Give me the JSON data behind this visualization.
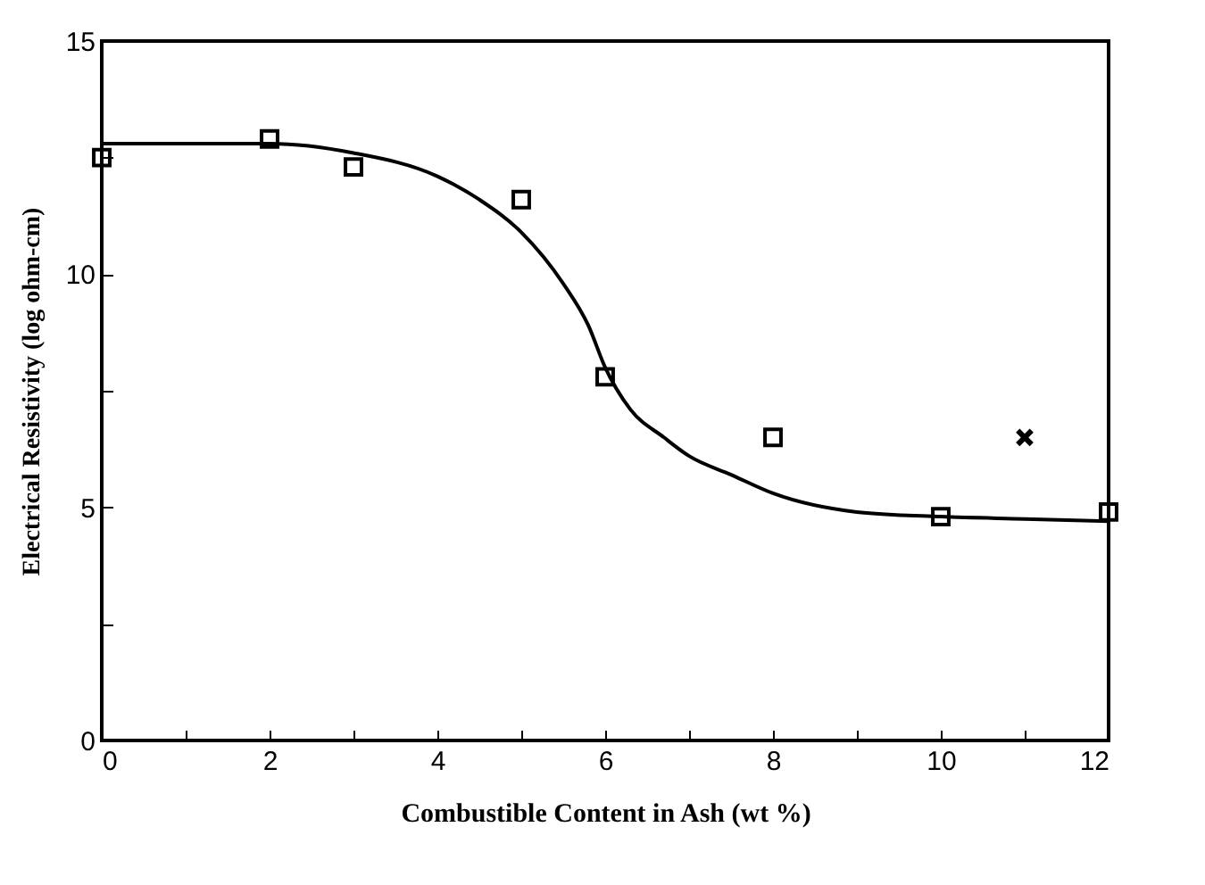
{
  "chart_data": {
    "type": "scatter",
    "xlabel": "Combustible Content in Ash (wt %)",
    "ylabel": "Electrical Resistivity (log ohm-cm)",
    "xlim": [
      0,
      12
    ],
    "ylim": [
      0,
      15
    ],
    "xticks": [
      0,
      {
        "value": 1,
        "label": null
      },
      2,
      {
        "value": 3,
        "label": null
      },
      4,
      {
        "value": 5,
        "label": null
      },
      6,
      {
        "value": 7,
        "label": null
      },
      8,
      {
        "value": 9,
        "label": null
      },
      10,
      {
        "value": 11,
        "label": null
      },
      12
    ],
    "yticks": [
      0,
      {
        "value": 2.5,
        "label": null
      },
      5,
      {
        "value": 7.5,
        "label": null
      },
      10,
      {
        "value": 12.5,
        "label": null
      },
      15
    ],
    "grid": false,
    "series": [
      {
        "marker": "square",
        "color": "#000000",
        "x": [
          0,
          2,
          3,
          5,
          6,
          8,
          10,
          12
        ],
        "values": [
          12.5,
          12.9,
          12.3,
          11.6,
          7.8,
          6.5,
          4.8,
          4.9
        ]
      },
      {
        "marker": "cross",
        "color": "#000000",
        "x": [
          11
        ],
        "values": [
          6.5
        ]
      },
      {
        "type": "line",
        "marker": "none",
        "line_style": "solid",
        "color": "#000000",
        "x": [
          0,
          1,
          2,
          3,
          4,
          4.5,
          5,
          5.5,
          5.8,
          6,
          6.3,
          6.7,
          7,
          7.5,
          8,
          9,
          10,
          11,
          12
        ],
        "values": [
          12.8,
          12.8,
          12.8,
          12.6,
          12.1,
          11.6,
          10.9,
          9.8,
          8.9,
          8.0,
          7.1,
          6.5,
          6.1,
          5.7,
          5.3,
          4.9,
          4.8,
          4.75,
          4.7
        ]
      }
    ]
  }
}
